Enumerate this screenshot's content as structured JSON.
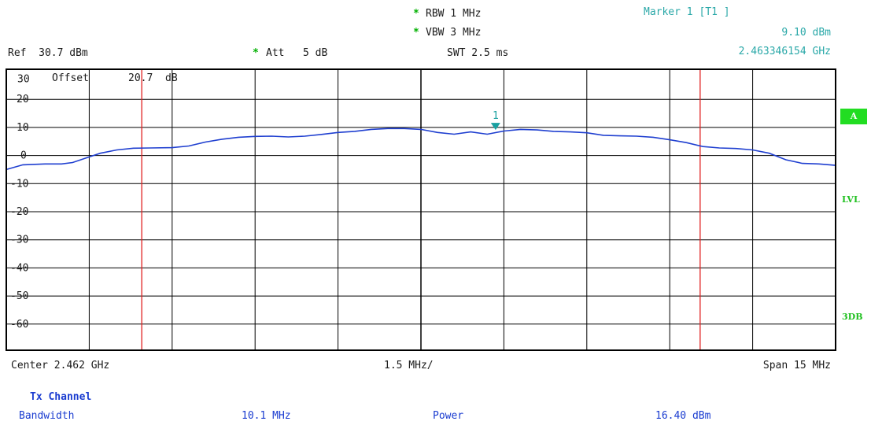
{
  "header": {
    "rbw": "RBW 1 MHz",
    "vbw": "VBW 3 MHz",
    "swt": "SWT 2.5 ms",
    "ref": "Ref  30.7 dBm",
    "att": "Att   5 dB",
    "star": "*",
    "marker_title": "Marker 1 [T1 ]",
    "marker_level": "9.10 dBm",
    "marker_freq": "2.463346154 GHz"
  },
  "offset_label": "Offset",
  "offset_value": "20.7",
  "offset_unit": "dB",
  "side_labels": {
    "a": "A",
    "lvl": "LVL",
    "db3": "3DB"
  },
  "footer": {
    "center": "Center 2.462 GHz",
    "div": "1.5 MHz/",
    "span": "Span 15 MHz"
  },
  "channel": {
    "title": "Tx Channel",
    "bandwidth_label": "Bandwidth",
    "bandwidth_value": "10.1 MHz",
    "power_label": "Power",
    "power_value": "16.40 dBm"
  },
  "colors": {
    "trace": "#1f3fd0",
    "lines": "#e02020",
    "marker": "#1aa0a0",
    "accent": "#22dd22"
  },
  "chart_data": {
    "type": "line",
    "x_unit": "MHz offset from center",
    "xlim": [
      -7.5,
      7.5
    ],
    "ylim": [
      -69.3,
      30.7
    ],
    "y_ticks": [
      {
        "v": 30,
        "label": "30"
      },
      {
        "v": 20,
        "label": "20"
      },
      {
        "v": 10,
        "label": "10"
      },
      {
        "v": 0,
        "label": "0"
      },
      {
        "v": -10,
        "label": "-10"
      },
      {
        "v": -20,
        "label": "-20"
      },
      {
        "v": -30,
        "label": "-30"
      },
      {
        "v": -40,
        "label": "-40"
      },
      {
        "v": -50,
        "label": "-50"
      },
      {
        "v": -60,
        "label": "-60"
      }
    ],
    "grid": true,
    "vertical_lines_mhz": [
      -5.05,
      5.05
    ],
    "marker": {
      "label": "1",
      "x": 1.35,
      "y": 9.1
    },
    "trace": [
      [
        -7.5,
        -5.0
      ],
      [
        -7.2,
        -3.3
      ],
      [
        -6.8,
        -3.0
      ],
      [
        -6.5,
        -3.0
      ],
      [
        -6.3,
        -2.5
      ],
      [
        -6.0,
        -0.5
      ],
      [
        -5.8,
        0.8
      ],
      [
        -5.5,
        2.0
      ],
      [
        -5.2,
        2.6
      ],
      [
        -4.9,
        2.7
      ],
      [
        -4.5,
        2.8
      ],
      [
        -4.2,
        3.4
      ],
      [
        -3.9,
        4.8
      ],
      [
        -3.6,
        5.8
      ],
      [
        -3.3,
        6.5
      ],
      [
        -3.0,
        6.8
      ],
      [
        -2.7,
        6.9
      ],
      [
        -2.4,
        6.6
      ],
      [
        -2.1,
        6.9
      ],
      [
        -1.8,
        7.5
      ],
      [
        -1.5,
        8.2
      ],
      [
        -1.2,
        8.6
      ],
      [
        -0.9,
        9.3
      ],
      [
        -0.6,
        9.6
      ],
      [
        -0.3,
        9.6
      ],
      [
        0.0,
        9.3
      ],
      [
        0.3,
        8.2
      ],
      [
        0.6,
        7.6
      ],
      [
        0.9,
        8.4
      ],
      [
        1.2,
        7.6
      ],
      [
        1.5,
        8.7
      ],
      [
        1.8,
        9.3
      ],
      [
        2.1,
        9.1
      ],
      [
        2.4,
        8.6
      ],
      [
        2.7,
        8.4
      ],
      [
        3.0,
        8.1
      ],
      [
        3.3,
        7.2
      ],
      [
        3.6,
        7.0
      ],
      [
        3.9,
        6.9
      ],
      [
        4.2,
        6.5
      ],
      [
        4.5,
        5.6
      ],
      [
        4.8,
        4.6
      ],
      [
        5.1,
        3.2
      ],
      [
        5.4,
        2.7
      ],
      [
        5.7,
        2.5
      ],
      [
        6.0,
        2.0
      ],
      [
        6.3,
        0.8
      ],
      [
        6.6,
        -1.5
      ],
      [
        6.9,
        -2.8
      ],
      [
        7.2,
        -3.0
      ],
      [
        7.5,
        -3.5
      ]
    ]
  }
}
